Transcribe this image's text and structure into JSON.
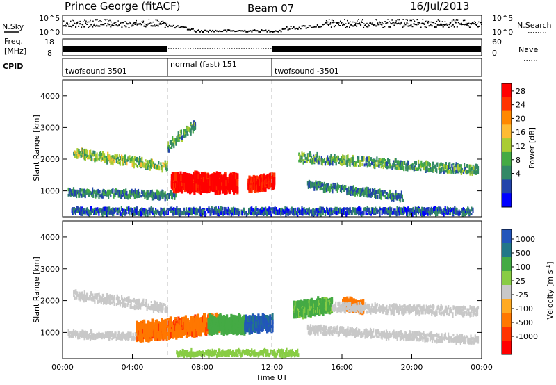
{
  "header": {
    "station": "Prince George (fitACF)",
    "beam": "Beam 07",
    "date": "16/Jul/2013"
  },
  "panels": {
    "nsky_label": "N.Sky",
    "nsearch_label": "N.Search",
    "freq_label_1": "Freq.",
    "freq_label_2": "[MHz]",
    "nave_label": "Nave",
    "cpid_label": "CPID",
    "nsky_ticks": [
      "10^5",
      "10^0"
    ],
    "nsearch_ticks": [
      "10^5",
      "10^0"
    ],
    "freq_ticks": [
      "18",
      "8"
    ],
    "nave_ticks": [
      "60",
      "0"
    ]
  },
  "cpid_segments": [
    {
      "name": "twofsound 3501",
      "start": 0,
      "end": 6
    },
    {
      "name": "normal (fast) 151",
      "start": 6,
      "end": 12
    },
    {
      "name": "twofsound -3501",
      "start": 12,
      "end": 24
    }
  ],
  "power_colorbar": {
    "title": "Power [dB]",
    "ticks": [
      "28",
      "24",
      "20",
      "16",
      "12",
      "8",
      "4"
    ],
    "colors": [
      "#ff0000",
      "#ff3300",
      "#ff8800",
      "#ffbb33",
      "#aacc33",
      "#44aa44",
      "#338866",
      "#2244aa",
      "#0000ff"
    ]
  },
  "velocity_colorbar": {
    "title": "Velocity [m s",
    "title_sup": "-1",
    "title_end": "]",
    "ticks": [
      "1000",
      "500",
      "100",
      "25",
      "-25",
      "-100",
      "-500",
      "-1000"
    ],
    "colors": [
      "#2255bb",
      "#227788",
      "#44aa44",
      "#88cc44",
      "#c8c8c8",
      "#ffaa22",
      "#ff7700",
      "#ff3300",
      "#ff0000"
    ]
  },
  "axes": {
    "ylabel": "Slant Range [km]",
    "xlabel": "Time UT"
  },
  "chart_data": [
    {
      "type": "heatmap",
      "title": "",
      "colorbar_label": "Power [dB]",
      "xlabel": "",
      "ylabel": "Slant Range [km]",
      "xlim": [
        0,
        24
      ],
      "ylim": [
        180,
        4500
      ],
      "yticks": [
        1000,
        2000,
        3000,
        4000
      ],
      "xticks": [
        "00:00",
        "04:00",
        "08:00",
        "12:00",
        "16:00",
        "20:00",
        "00:00"
      ],
      "features": [
        {
          "name": "band",
          "start": 0.6,
          "end": 6.0,
          "range_start": 2200,
          "range_end": 1750,
          "width": 260,
          "value": 12
        },
        {
          "name": "band",
          "start": 0.3,
          "end": 6.5,
          "range_start": 950,
          "range_end": 850,
          "width": 200,
          "value": 8
        },
        {
          "name": "blob",
          "start": 6.2,
          "end": 10.0,
          "range_start": 1250,
          "range_end": 1250,
          "width": 500,
          "value": 28
        },
        {
          "name": "blob",
          "start": 10.6,
          "end": 12.1,
          "range_start": 1200,
          "range_end": 1300,
          "width": 350,
          "value": 26
        },
        {
          "name": "band",
          "start": 6.0,
          "end": 7.6,
          "range_start": 2400,
          "range_end": 3100,
          "width": 300,
          "value": 10
        },
        {
          "name": "band",
          "start": 13.5,
          "end": 23.8,
          "range_start": 2050,
          "range_end": 1650,
          "width": 260,
          "value": 10
        },
        {
          "name": "band",
          "start": 14.0,
          "end": 19.5,
          "range_start": 1200,
          "range_end": 800,
          "width": 220,
          "value": 8
        },
        {
          "name": "band",
          "start": 0.5,
          "end": 23.5,
          "range_start": 350,
          "range_end": 350,
          "width": 180,
          "value": 6
        }
      ]
    },
    {
      "type": "heatmap",
      "title": "",
      "colorbar_label": "Velocity [m s-1]",
      "xlabel": "Time UT",
      "ylabel": "Slant Range [km]",
      "xlim": [
        0,
        24
      ],
      "ylim": [
        180,
        4500
      ],
      "yticks": [
        1000,
        2000,
        3000,
        4000
      ],
      "xticks": [
        "00:00",
        "04:00",
        "08:00",
        "12:00",
        "16:00",
        "20:00",
        "00:00"
      ],
      "features": [
        {
          "name": "ground-scatter",
          "start": 0.6,
          "end": 6.0,
          "range_start": 2200,
          "range_end": 1750,
          "width": 260,
          "value": 0
        },
        {
          "name": "ground-scatter",
          "start": 0.3,
          "end": 5.0,
          "range_start": 950,
          "range_end": 850,
          "width": 200,
          "value": 0
        },
        {
          "name": "blob",
          "start": 4.2,
          "end": 9.0,
          "range_start": 1000,
          "range_end": 1300,
          "width": 500,
          "value": -300
        },
        {
          "name": "blob",
          "start": 8.3,
          "end": 10.4,
          "range_start": 1250,
          "range_end": 1250,
          "width": 450,
          "value": 200
        },
        {
          "name": "blob",
          "start": 10.4,
          "end": 12.0,
          "range_start": 1250,
          "range_end": 1300,
          "width": 400,
          "value": 700
        },
        {
          "name": "blob",
          "start": 13.2,
          "end": 15.4,
          "range_start": 1700,
          "range_end": 1900,
          "width": 400,
          "value": 120
        },
        {
          "name": "blob",
          "start": 16.0,
          "end": 17.2,
          "range_start": 1900,
          "range_end": 1800,
          "width": 250,
          "value": -200
        },
        {
          "name": "ground-scatter",
          "start": 15.4,
          "end": 23.8,
          "range_start": 1800,
          "range_end": 1650,
          "width": 260,
          "value": 0
        },
        {
          "name": "ground-scatter",
          "start": 14.0,
          "end": 23.8,
          "range_start": 1100,
          "range_end": 750,
          "width": 220,
          "value": 0
        },
        {
          "name": "band",
          "start": 6.5,
          "end": 13.5,
          "range_start": 350,
          "range_end": 350,
          "width": 160,
          "value": 60
        }
      ]
    }
  ]
}
